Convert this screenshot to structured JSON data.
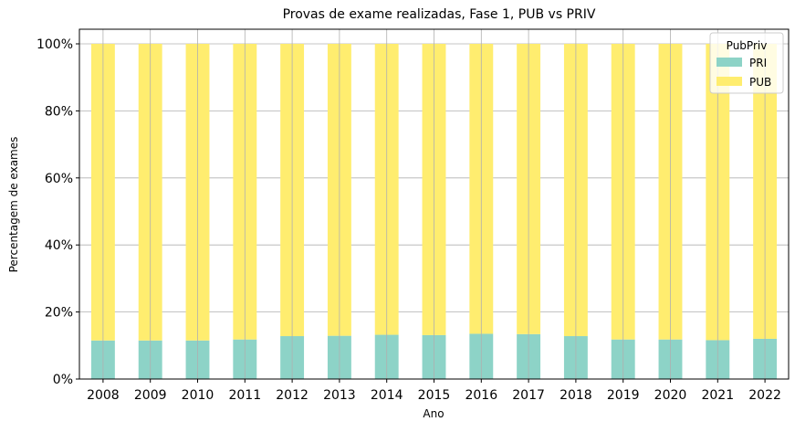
{
  "chart_data": {
    "type": "bar",
    "stacked": true,
    "title": "Provas de exame realizadas, Fase 1, PUB vs PRIV",
    "xlabel": "Ano",
    "ylabel": "Percentagem de exames",
    "ylim": [
      0,
      1.0
    ],
    "yticks": [
      0,
      0.2,
      0.4,
      0.6,
      0.8,
      1.0
    ],
    "yticklabels": [
      "0%",
      "20%",
      "40%",
      "60%",
      "80%",
      "100%"
    ],
    "grid": true,
    "categories": [
      "2008",
      "2009",
      "2010",
      "2011",
      "2012",
      "2013",
      "2014",
      "2015",
      "2016",
      "2017",
      "2018",
      "2019",
      "2020",
      "2021",
      "2022"
    ],
    "series": [
      {
        "name": "PRI",
        "color": "#8dd3c7",
        "values": [
          0.115,
          0.115,
          0.115,
          0.118,
          0.128,
          0.129,
          0.132,
          0.131,
          0.135,
          0.134,
          0.128,
          0.118,
          0.118,
          0.116,
          0.12
        ]
      },
      {
        "name": "PUB",
        "color": "#ffed6f",
        "values": [
          0.885,
          0.885,
          0.885,
          0.882,
          0.872,
          0.871,
          0.868,
          0.869,
          0.865,
          0.866,
          0.872,
          0.882,
          0.882,
          0.884,
          0.88
        ]
      }
    ],
    "legend": {
      "title": "PubPriv",
      "placement": "top-right"
    }
  }
}
